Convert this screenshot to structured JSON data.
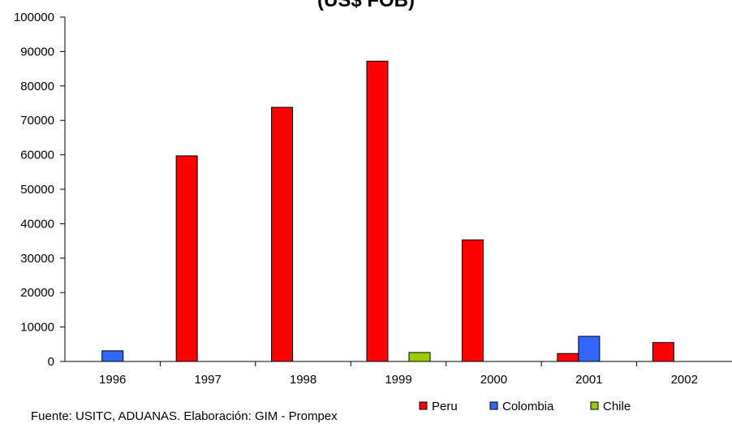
{
  "chart_data": {
    "type": "bar",
    "title": "(US$ FOB)",
    "categories": [
      "1996",
      "1997",
      "1998",
      "1999",
      "2000",
      "2001",
      "2002"
    ],
    "series": [
      {
        "name": "Peru",
        "color": "#ff0000",
        "values": [
          0,
          59700,
          73800,
          87200,
          35300,
          2300,
          5500
        ]
      },
      {
        "name": "Colombia",
        "color": "#3366ff",
        "values": [
          3100,
          0,
          0,
          0,
          0,
          7300,
          0
        ]
      },
      {
        "name": "Chile",
        "color": "#99cc00",
        "values": [
          0,
          0,
          0,
          2600,
          0,
          0,
          0
        ]
      }
    ],
    "y_ticks": [
      "0",
      "10000",
      "20000",
      "30000",
      "40000",
      "50000",
      "60000",
      "70000",
      "80000",
      "90000",
      "100000"
    ],
    "ylim": [
      0,
      100000
    ],
    "grid": false,
    "legend_position": "bottom-right"
  },
  "source": "Fuente: USITC, ADUANAS. Elaboración: GIM - Prompex"
}
